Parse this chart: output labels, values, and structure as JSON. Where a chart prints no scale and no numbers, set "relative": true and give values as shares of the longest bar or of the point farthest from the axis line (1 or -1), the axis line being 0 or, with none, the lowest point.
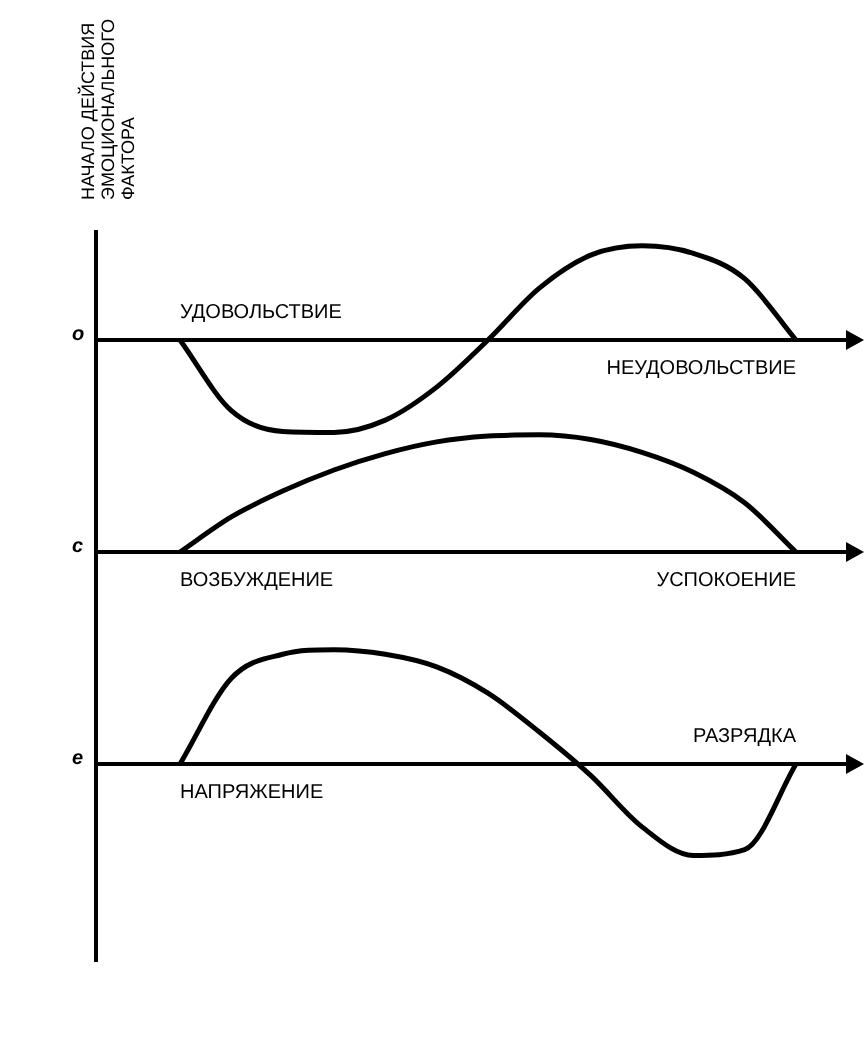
{
  "chart_data": [
    {
      "type": "line",
      "relative": true,
      "marker": "none",
      "ylabel": "o",
      "categories": [
        null,
        null,
        null,
        null,
        null,
        null,
        null,
        null,
        null,
        null,
        null,
        null,
        null
      ],
      "series": [
        {
          "color": "#000000",
          "values": [
            0,
            -0.75,
            -0.97,
            -0.98,
            -0.85,
            -0.5,
            0,
            0.55,
            0.9,
            1,
            0.92,
            0.65,
            0
          ]
        }
      ],
      "annotations": [
        "НАЧАЛО ДЕЙСТВИЯ ЭМОЦИОНАЛЬНОГО ФАКТОРА",
        "УДОВОЛЬСТВИЕ",
        "НЕУДОВОЛЬСТВИЕ"
      ]
    },
    {
      "type": "line",
      "relative": true,
      "marker": "none",
      "ylabel": "c",
      "categories": [
        null,
        null,
        null,
        null,
        null,
        null,
        null,
        null,
        null,
        null,
        null,
        null,
        null
      ],
      "series": [
        {
          "color": "#000000",
          "values": [
            0,
            0.3,
            0.52,
            0.7,
            0.84,
            0.94,
            0.99,
            1,
            0.96,
            0.85,
            0.68,
            0.42,
            0
          ]
        }
      ],
      "annotations": [
        "ВОЗБУЖДЕНИЕ",
        "УСПОКОЕНИЕ"
      ]
    },
    {
      "type": "line",
      "relative": true,
      "marker": "none",
      "ylabel": "e",
      "categories": [
        null,
        null,
        null,
        null,
        null,
        null,
        null,
        null,
        null,
        null,
        null,
        null,
        null
      ],
      "series": [
        {
          "color": "#000000",
          "values": [
            0,
            0.75,
            0.96,
            1,
            0.96,
            0.85,
            0.62,
            0.28,
            -0.1,
            -0.55,
            -0.8,
            -0.75,
            0
          ]
        }
      ],
      "annotations": [
        "РАЗРЯДКА",
        "НАПРЯЖЕНИЕ"
      ]
    }
  ]
}
